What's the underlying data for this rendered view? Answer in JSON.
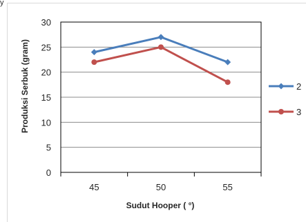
{
  "fragment": {
    "corner_text": "y"
  },
  "chart_data": {
    "type": "line",
    "title": "",
    "xlabel": "Sudut Hooper ( °)",
    "ylabel": "Produksi Serbuk (gram)",
    "categories": [
      "45",
      "50",
      "55"
    ],
    "ylim": [
      0,
      30
    ],
    "yticks": [
      "0",
      "5",
      "10",
      "15",
      "20",
      "25",
      "30"
    ],
    "grid": true,
    "legend": "right",
    "series": [
      {
        "name": "2",
        "values": [
          24,
          27,
          22
        ],
        "color": "#4a7ebb",
        "marker": "diamond"
      },
      {
        "name": "3",
        "values": [
          22,
          25,
          18
        ],
        "color": "#c0504d",
        "marker": "circle"
      }
    ]
  }
}
